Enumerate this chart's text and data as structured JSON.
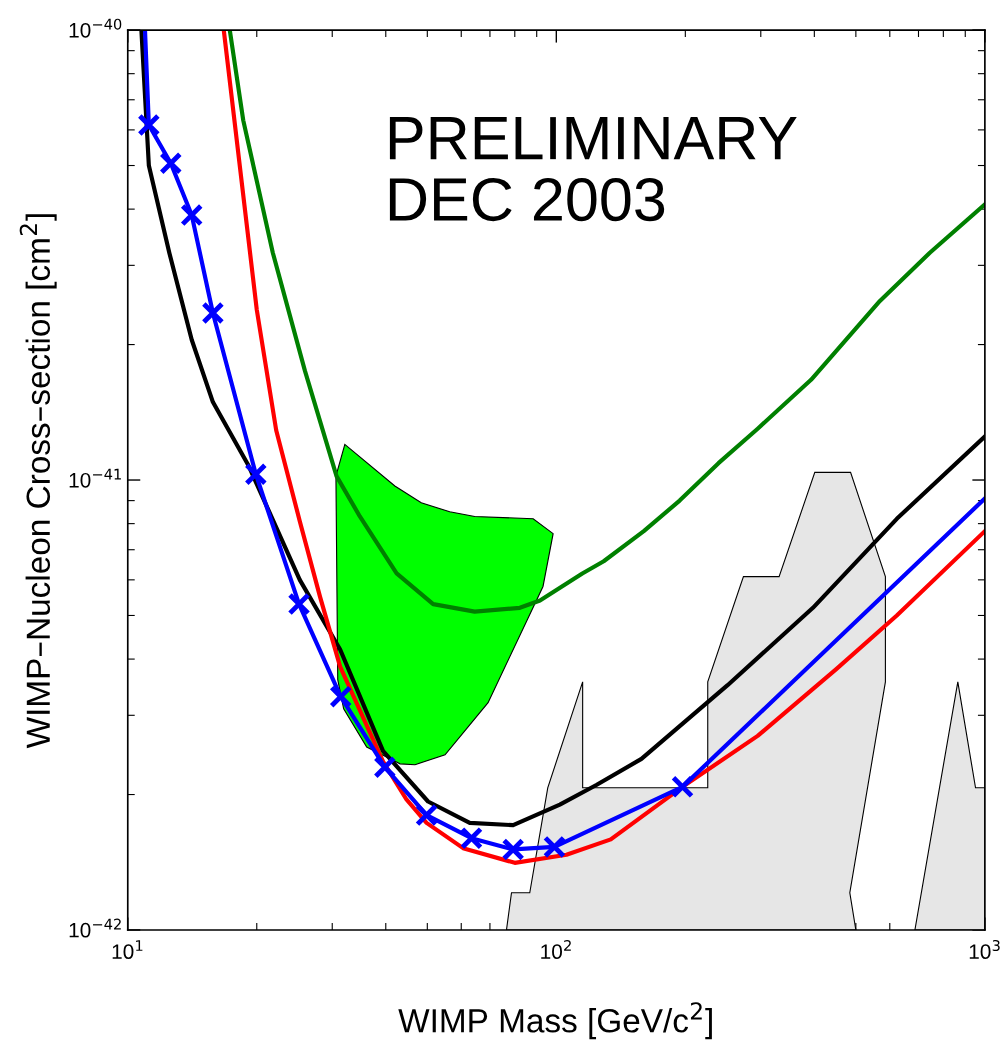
{
  "chart_data": {
    "type": "line",
    "xlabel": "WIMP Mass [GeV/c$^{2}$]",
    "ylabel": "WIMP–Nucleon Cross–section [cm$^{2}$]",
    "annotations": [
      "PRELIMINARY\nDEC 2003"
    ],
    "log": "xy",
    "grid": false,
    "xlim": [
      10,
      1000
    ],
    "ylim": [
      1e-42,
      1e-40
    ],
    "xticks": [
      {
        "value": 10,
        "label": "10$^{1}$"
      },
      {
        "value": 100,
        "label": "10$^{2}$"
      },
      {
        "value": 1000,
        "label": "10$^{3}$"
      }
    ],
    "yticks": [
      {
        "value": 1e-42,
        "label": "10$^{−42}$"
      },
      {
        "value": 1e-41,
        "label": "10$^{−41}$"
      },
      {
        "value": 1e-40,
        "label": "10$^{−40}$"
      }
    ],
    "series": [
      {
        "type": "area",
        "color": "#e6e6e6",
        "x": [
          76.5,
          78.6,
          86.7,
          95.5,
          115.2,
          115.2,
          225.6,
          225.6,
          273.3,
          331,
          401,
          486,
          586,
          586,
          484,
          500
        ],
        "values": [
          1e-42,
          1.21e-42,
          1.21e-42,
          2.07e-42,
          3.56e-42,
          2.07e-42,
          2.07e-42,
          3.56e-42,
          6.1e-42,
          6.1e-42,
          1.04e-41,
          1.04e-41,
          6.1e-42,
          3.56e-42,
          1.21e-42,
          1e-42
        ]
      },
      {
        "type": "area",
        "color": "#e6e6e6",
        "x": [
          686.6,
          864.7,
          951,
          1000,
          1000
        ],
        "values": [
          1e-42,
          3.56e-42,
          2.07e-42,
          2.07e-42,
          1e-42
        ]
      },
      {
        "type": "area",
        "color": "#00ff00",
        "x": [
          30.6,
          30.9,
          31.9,
          36.1,
          43.2,
          46.8,
          55,
          61.7,
          69.3,
          93.1,
          98.3,
          88.3,
          64.5,
          56.4,
          48.4,
          42,
          32.1
        ],
        "values": [
          1.02e-41,
          3.6e-42,
          3.1e-42,
          2.55e-42,
          2.34e-42,
          2.33e-42,
          2.45e-42,
          2.8e-42,
          3.2e-42,
          5.8e-42,
          7.6e-42,
          8.2e-42,
          8.3e-42,
          8.5e-42,
          8.9e-42,
          9.7e-42,
          1.2e-41
        ]
      },
      {
        "color": "#008000",
        "x": [
          17.3,
          18.6,
          21.8,
          25.9,
          30.7,
          34.8,
          42.4,
          51.6,
          64.5,
          82.2,
          91.6,
          115,
          129,
          160,
          194,
          239,
          295,
          393,
          569,
          744,
          1000
        ],
        "values": [
          1e-40,
          6.3e-41,
          3.2e-41,
          1.75e-41,
          1.02e-41,
          8.3e-42,
          6.2e-42,
          5.3e-42,
          5.1e-42,
          5.2e-42,
          5.4e-42,
          6.2e-42,
          6.6e-42,
          7.7e-42,
          9e-42,
          1.09e-41,
          1.3e-41,
          1.67e-41,
          2.5e-41,
          3.2e-41,
          4.1e-41
        ]
      },
      {
        "color": "#000000",
        "x": [
          10.76,
          11.2,
          12.5,
          14.1,
          15.8,
          19.1,
          25.2,
          31.3,
          39.4,
          50.2,
          62.8,
          79.3,
          101.9,
          124,
          158,
          251,
          397,
          623,
          1000
        ],
        "values": [
          1e-40,
          5e-41,
          3.2e-41,
          2.05e-41,
          1.49e-41,
          1.08e-41,
          6e-42,
          4.2e-42,
          2.5e-42,
          1.93e-42,
          1.73e-42,
          1.71e-42,
          1.9e-42,
          2.1e-42,
          2.4e-42,
          3.5e-42,
          5.2e-42,
          8.2e-42,
          1.25e-41
        ]
      },
      {
        "color": "#ff0000",
        "x": [
          16.75,
          20,
          22.2,
          25.2,
          28.1,
          31.3,
          39.4,
          44.7,
          49.8,
          60.6,
          80,
          105.6,
          134,
          197,
          295,
          450,
          623,
          1000
        ],
        "values": [
          1e-40,
          2.39e-41,
          1.29e-41,
          8.1e-42,
          5.5e-42,
          3.85e-42,
          2.37e-42,
          1.95e-42,
          1.73e-42,
          1.52e-42,
          1.41e-42,
          1.47e-42,
          1.59e-42,
          2.08e-42,
          2.7e-42,
          3.8e-42,
          5e-42,
          7.7e-42
        ]
      },
      {
        "color": "#0000ff",
        "x": [
          10.97,
          11.2,
          12.6,
          14.1,
          15.8,
          19.9,
          25.1,
          31.4,
          39.8,
          49.8,
          63.4,
          79.3,
          99,
          197,
          1000
        ],
        "values": [
          1e-40,
          6.15e-41,
          5.06e-41,
          3.88e-41,
          2.35e-41,
          1.03e-41,
          5.3e-42,
          3.3e-42,
          2.3e-42,
          1.8e-42,
          1.6e-42,
          1.51e-42,
          1.53e-42,
          2.08e-42,
          9.1e-42
        ]
      },
      {
        "type": "scatter",
        "color": "#0000ff",
        "marker": "cross",
        "x": [
          11.2,
          12.6,
          14.1,
          15.8,
          19.9,
          25.1,
          31.4,
          39.8,
          49.8,
          63.4,
          79.3,
          99,
          197
        ],
        "values": [
          6.15e-41,
          5.06e-41,
          3.88e-41,
          2.35e-41,
          1.03e-41,
          5.3e-42,
          3.3e-42,
          2.3e-42,
          1.8e-42,
          1.6e-42,
          1.51e-42,
          1.53e-42,
          2.08e-42
        ]
      }
    ]
  }
}
